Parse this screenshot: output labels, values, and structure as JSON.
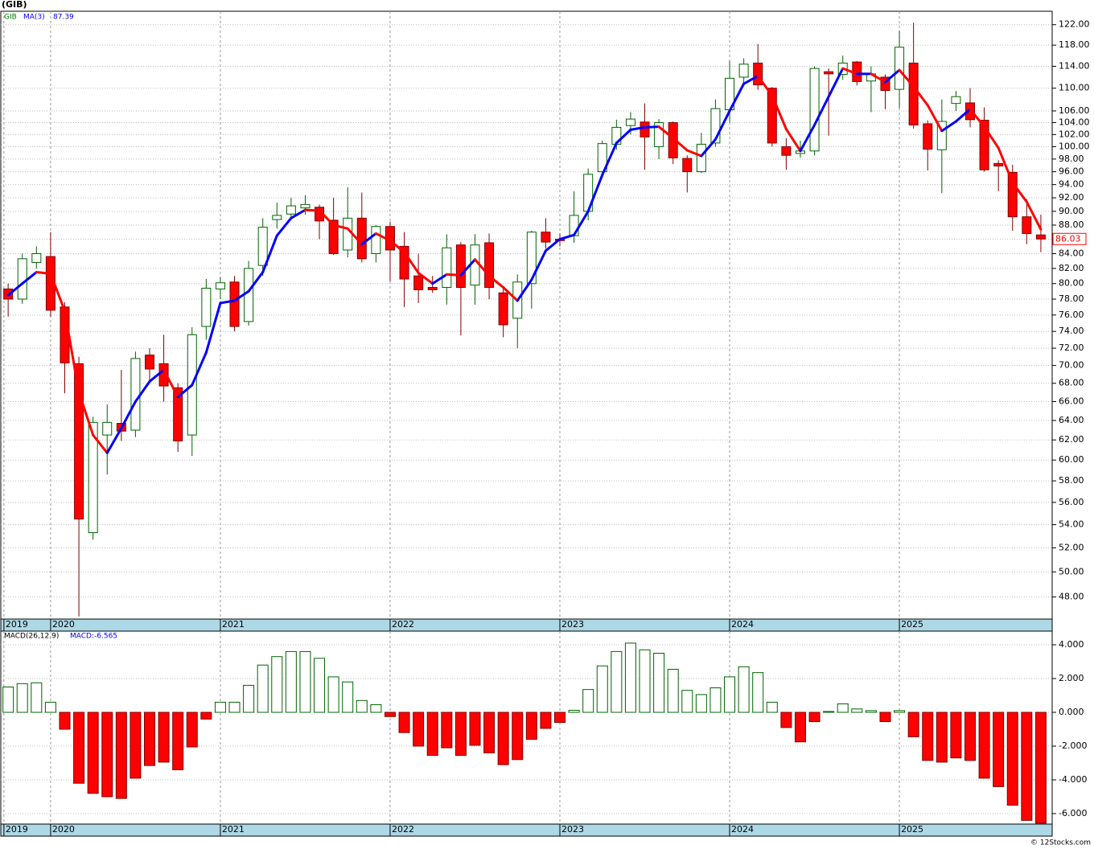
{
  "chart_data": [
    {
      "type": "candlestick",
      "title": "(GIB)",
      "name": "GIB",
      "log_scale": true,
      "grid": true,
      "colors": {
        "up": "#006400",
        "down": "#ff0000"
      },
      "xlim": [
        -0.52,
        73.8
      ],
      "xticks": [
        {
          "value": -0.3,
          "label": "2019"
        },
        {
          "value": 3,
          "label": "2020"
        },
        {
          "value": 15,
          "label": "2021"
        },
        {
          "value": 27,
          "label": "2022"
        },
        {
          "value": 39,
          "label": "2023"
        },
        {
          "value": 51,
          "label": "2024"
        },
        {
          "value": 63,
          "label": "2025"
        }
      ],
      "ylim": [
        46.3,
        124.7
      ],
      "yticks": [
        {
          "value": 48,
          "label": "48.00"
        },
        {
          "value": 50,
          "label": "50.00"
        },
        {
          "value": 52,
          "label": "52.00"
        },
        {
          "value": 54,
          "label": "54.00"
        },
        {
          "value": 56,
          "label": "56.00"
        },
        {
          "value": 58,
          "label": "58.00"
        },
        {
          "value": 60,
          "label": "60.00"
        },
        {
          "value": 62,
          "label": "62.00"
        },
        {
          "value": 64,
          "label": "64.00"
        },
        {
          "value": 66,
          "label": "66.00"
        },
        {
          "value": 68,
          "label": "68.00"
        },
        {
          "value": 70,
          "label": "70.00"
        },
        {
          "value": 72,
          "label": "72.00"
        },
        {
          "value": 74,
          "label": "74.00"
        },
        {
          "value": 76,
          "label": "76.00"
        },
        {
          "value": 78,
          "label": "78.00"
        },
        {
          "value": 80,
          "label": "80.00"
        },
        {
          "value": 82,
          "label": "82.00"
        },
        {
          "value": 84,
          "label": "84.00"
        },
        {
          "value": 86,
          "label": "86.00"
        },
        {
          "value": 88,
          "label": "88.00"
        },
        {
          "value": 90,
          "label": "90.00"
        },
        {
          "value": 92,
          "label": "92.00"
        },
        {
          "value": 94,
          "label": "94.00"
        },
        {
          "value": 96,
          "label": "96.00"
        },
        {
          "value": 98,
          "label": "98.00"
        },
        {
          "value": 100,
          "label": "100.00"
        },
        {
          "value": 102,
          "label": "102.00"
        },
        {
          "value": 104,
          "label": "104.00"
        },
        {
          "value": 106,
          "label": "106.00"
        },
        {
          "value": 110,
          "label": "110.00"
        },
        {
          "value": 114,
          "label": "114.00"
        },
        {
          "value": 118,
          "label": "118.00"
        },
        {
          "value": 122,
          "label": "122.00"
        }
      ],
      "open": [
        79.3,
        78,
        82.8,
        83.6,
        77,
        70.2,
        53.3,
        62.5,
        63.7,
        63,
        71.2,
        70.2,
        67.5,
        62.5,
        74.6,
        79.3,
        80.2,
        75.2,
        82.4,
        88.8,
        89.6,
        90.5,
        90.6,
        88.7,
        84.5,
        89,
        84,
        87.8,
        85,
        81,
        79.5,
        79.5,
        85.2,
        79.8,
        85.5,
        78.8,
        75.6,
        80,
        87,
        86,
        86.5,
        90,
        96,
        100.4,
        103.5,
        104.1,
        100,
        104,
        98.1,
        96,
        100.6,
        106.2,
        112,
        114.6,
        110,
        100,
        98.9,
        99.3,
        113,
        112.5,
        114.8,
        111.3,
        112,
        109.8,
        114.6,
        103.8,
        99.5,
        107.3,
        107.4,
        104.4,
        97.3,
        95.9,
        89.2,
        86.6
      ],
      "high": [
        80,
        84,
        85,
        87,
        77.6,
        71,
        64.4,
        65.7,
        69.5,
        71.6,
        72,
        73.6,
        68,
        74.5,
        80.6,
        80.8,
        81,
        83,
        89,
        91.3,
        92,
        92.4,
        91,
        92,
        93.6,
        92.8,
        88,
        88.5,
        87,
        84,
        81,
        86.7,
        85.6,
        86.7,
        86.8,
        79.5,
        81.2,
        87.2,
        89,
        86.8,
        93,
        96.5,
        101,
        104.5,
        105.8,
        107.3,
        104.6,
        104.2,
        98.6,
        102.3,
        108,
        115,
        115.5,
        118.2,
        110.2,
        101.4,
        101,
        114,
        113.6,
        116,
        115,
        114,
        112.5,
        120.8,
        122.4,
        104.4,
        108,
        109.5,
        110,
        106.6,
        97.8,
        97.1,
        91.8,
        89.5
      ],
      "low": [
        75.8,
        77.4,
        82,
        75.8,
        66.9,
        46.5,
        52.7,
        58.6,
        61.9,
        62.3,
        68,
        66,
        60.8,
        60.4,
        73,
        78,
        74,
        74.7,
        81,
        87.5,
        88.8,
        89.5,
        86,
        83.8,
        83.5,
        82.8,
        82.8,
        80.3,
        77,
        77.5,
        78.8,
        77.3,
        73.5,
        77.3,
        78,
        73.3,
        72,
        76.8,
        84.7,
        85,
        85.5,
        88.7,
        95,
        99.5,
        102,
        96.3,
        98,
        97.2,
        92.8,
        95.8,
        100,
        104,
        110.5,
        109.7,
        100,
        96.3,
        98.2,
        98.6,
        101.8,
        111.5,
        110.5,
        105.8,
        106.3,
        106.5,
        103,
        96.2,
        92.7,
        106,
        103.2,
        96,
        93,
        87.2,
        85.3,
        84.2
      ],
      "close": [
        78,
        83.3,
        84,
        76.6,
        70.3,
        54.5,
        63.8,
        63.8,
        62.9,
        70.8,
        69.6,
        67.7,
        61.9,
        73.6,
        79.4,
        80.1,
        74.6,
        82,
        87.7,
        89.4,
        90.8,
        91,
        88.6,
        84,
        89,
        83.3,
        87.8,
        84.5,
        80.6,
        79.2,
        79.2,
        84.8,
        79.5,
        85.2,
        79.5,
        74.8,
        80.2,
        87,
        85.6,
        85.8,
        89.4,
        95.6,
        100.5,
        103.2,
        104.6,
        101.6,
        104,
        98.2,
        96,
        100.4,
        106.4,
        111.8,
        114.4,
        110.6,
        100.6,
        98.6,
        99.3,
        113.6,
        112.6,
        114.6,
        111.2,
        112.6,
        109.6,
        117.6,
        103.6,
        99.6,
        104.2,
        108.5,
        104.5,
        96.3,
        96.9,
        89.2,
        86.8,
        86.03
      ],
      "series": [
        {
          "name": "MA(3)",
          "color_up": "#0000ff",
          "color_down": "#ff0000",
          "values": [
            78.5,
            80,
            81.5,
            81.3,
            76.5,
            67,
            62.5,
            60.7,
            63.2,
            66,
            68.2,
            69.5,
            66.5,
            67.8,
            71.5,
            77.5,
            77.8,
            79,
            81.5,
            86.5,
            89,
            90.2,
            90.1,
            88,
            87.5,
            85.3,
            86.8,
            85.8,
            84.2,
            81.4,
            80,
            81.2,
            81.1,
            83.2,
            81,
            79.5,
            77.8,
            80.5,
            84.4,
            86,
            86.6,
            90,
            95.5,
            100.6,
            102.8,
            103.2,
            103.3,
            101.4,
            99.4,
            98.5,
            101.2,
            106,
            110.8,
            112.2,
            108.7,
            102.9,
            99.3,
            103.6,
            108.5,
            113.6,
            112.6,
            112.6,
            111.1,
            113.3,
            110.3,
            107,
            102.6,
            104.2,
            106.3,
            103.3,
            99.8,
            94.3,
            91.4,
            87.39
          ]
        }
      ],
      "credit": "© 12Stocks.com"
    },
    {
      "type": "bar",
      "title": "MACD(26,12,9)",
      "annotation": "MACD:-6.565",
      "grid": true,
      "colors": {
        "up": "#006400",
        "down": "#ff0000"
      },
      "ylim": [
        -6.62,
        4.81
      ],
      "yticks": [
        {
          "value": 4,
          "label": "4.000"
        },
        {
          "value": 2,
          "label": "2.000"
        },
        {
          "value": 0,
          "label": "0.000"
        },
        {
          "value": -2,
          "label": "-2.000"
        },
        {
          "value": -4,
          "label": "-4.000"
        },
        {
          "value": -6,
          "label": "-6.000"
        }
      ],
      "values": [
        1.5,
        1.7,
        1.75,
        0.6,
        -1.0,
        -4.2,
        -4.8,
        -5.0,
        -5.1,
        -3.9,
        -3.15,
        -2.95,
        -3.4,
        -2.05,
        -0.4,
        0.6,
        0.6,
        1.6,
        2.8,
        3.3,
        3.6,
        3.6,
        3.2,
        2.1,
        1.8,
        0.7,
        0.45,
        -0.25,
        -1.2,
        -2.0,
        -2.55,
        -2.1,
        -2.55,
        -1.95,
        -2.4,
        -3.1,
        -2.8,
        -1.6,
        -0.95,
        -0.6,
        0.12,
        1.35,
        2.75,
        3.6,
        4.1,
        3.7,
        3.5,
        2.55,
        1.3,
        1.05,
        1.45,
        2.1,
        2.7,
        2.35,
        0.6,
        -0.9,
        -1.75,
        -0.55,
        0.05,
        0.5,
        0.2,
        0.1,
        -0.55,
        0.1,
        -1.45,
        -2.85,
        -2.95,
        -2.7,
        -2.85,
        -3.9,
        -4.4,
        -5.5,
        -6.4,
        -6.565
      ]
    }
  ]
}
